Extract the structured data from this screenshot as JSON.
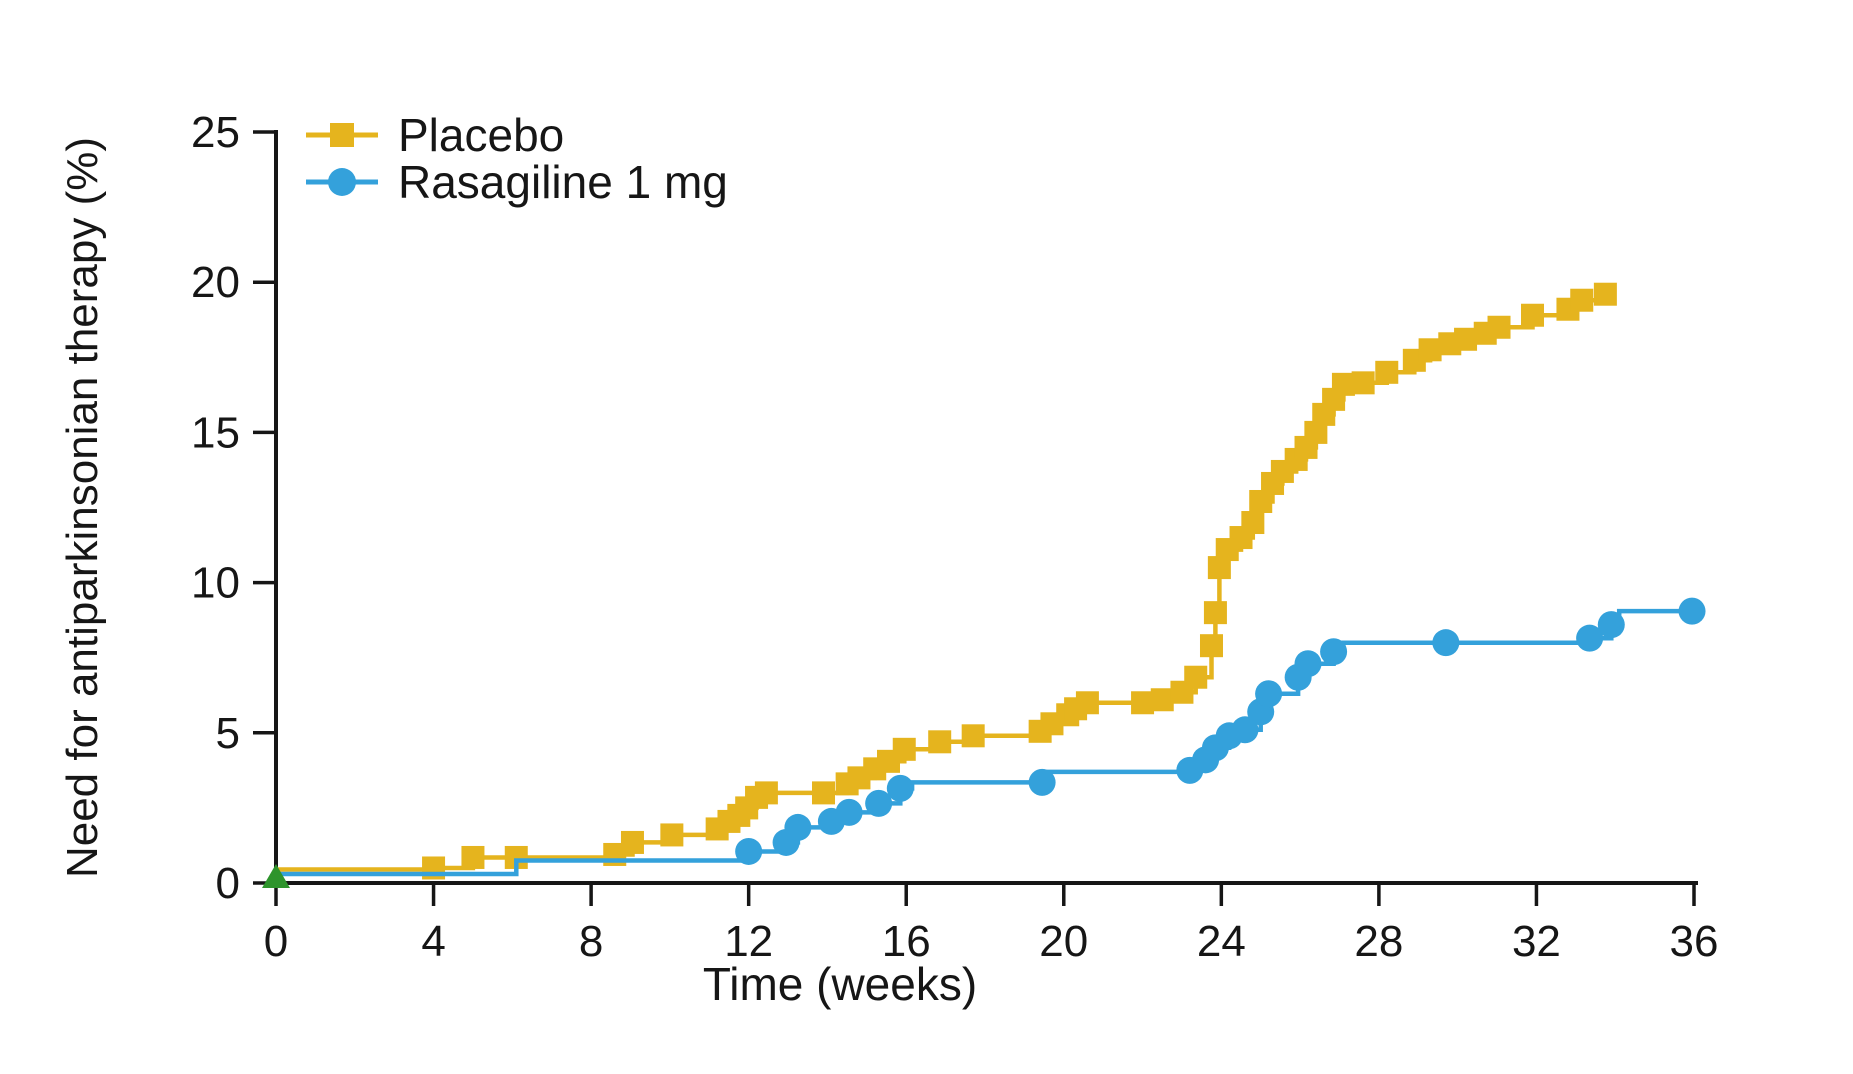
{
  "chart_data": {
    "type": "line",
    "variant": "kaplan_meier_cumulative_incidence_step",
    "title": "",
    "xlabel": "Time (weeks)",
    "ylabel": "Need for antiparkinsonian therapy (%)",
    "xlim": [
      0,
      36
    ],
    "ylim": [
      0,
      25
    ],
    "xticks": [
      0,
      4,
      8,
      12,
      16,
      20,
      24,
      28,
      32,
      36
    ],
    "yticks": [
      0,
      5,
      10,
      15,
      20,
      25
    ],
    "grid": false,
    "legend_position": "top-left-inside",
    "axis_color": "#161616",
    "background": "#ffffff",
    "origin_marker": {
      "shape": "triangle-up",
      "color": "#2e942c",
      "x": 0,
      "y": 0.2
    },
    "series": [
      {
        "name": "Placebo",
        "color": "#e5b41e",
        "marker": "square",
        "start": [
          0,
          0.45
        ],
        "points": [
          [
            4,
            0.5
          ],
          [
            5,
            0.85
          ],
          [
            6.1,
            0.85
          ],
          [
            8.6,
            0.95
          ],
          [
            9.05,
            1.35
          ],
          [
            10.05,
            1.6
          ],
          [
            11.2,
            1.8
          ],
          [
            11.5,
            2.05
          ],
          [
            11.75,
            2.25
          ],
          [
            11.95,
            2.5
          ],
          [
            12.2,
            2.85
          ],
          [
            12.45,
            3.0
          ],
          [
            13.9,
            3.0
          ],
          [
            14.5,
            3.3
          ],
          [
            14.8,
            3.5
          ],
          [
            15.2,
            3.8
          ],
          [
            15.55,
            4.05
          ],
          [
            15.95,
            4.45
          ],
          [
            16.85,
            4.7
          ],
          [
            17.7,
            4.9
          ],
          [
            19.4,
            5.05
          ],
          [
            19.7,
            5.3
          ],
          [
            20.1,
            5.6
          ],
          [
            20.3,
            5.8
          ],
          [
            20.6,
            6.0
          ],
          [
            22.0,
            6.0
          ],
          [
            22.5,
            6.1
          ],
          [
            23.0,
            6.35
          ],
          [
            23.35,
            6.85
          ],
          [
            23.75,
            7.9
          ],
          [
            23.85,
            9.0
          ],
          [
            23.95,
            10.5
          ],
          [
            24.15,
            11.1
          ],
          [
            24.5,
            11.5
          ],
          [
            24.8,
            12.0
          ],
          [
            25.0,
            12.7
          ],
          [
            25.3,
            13.3
          ],
          [
            25.55,
            13.7
          ],
          [
            25.9,
            14.1
          ],
          [
            26.15,
            14.5
          ],
          [
            26.4,
            15.0
          ],
          [
            26.6,
            15.6
          ],
          [
            26.85,
            16.1
          ],
          [
            27.1,
            16.6
          ],
          [
            27.6,
            16.65
          ],
          [
            28.2,
            17.0
          ],
          [
            28.9,
            17.4
          ],
          [
            29.3,
            17.75
          ],
          [
            29.8,
            17.95
          ],
          [
            30.2,
            18.1
          ],
          [
            30.7,
            18.3
          ],
          [
            31.05,
            18.5
          ],
          [
            31.9,
            18.9
          ],
          [
            32.8,
            19.1
          ],
          [
            33.15,
            19.4
          ],
          [
            33.75,
            19.6
          ]
        ]
      },
      {
        "name": "Rasagiline 1 mg",
        "color": "#34a1db",
        "marker": "circle",
        "start": [
          0,
          0.3
        ],
        "points": [
          [
            6.1,
            0.75,
            0
          ],
          [
            12.0,
            1.05
          ],
          [
            12.95,
            1.35
          ],
          [
            13.25,
            1.85
          ],
          [
            14.1,
            2.05
          ],
          [
            14.55,
            2.35
          ],
          [
            15.3,
            2.65
          ],
          [
            15.85,
            3.15
          ],
          [
            16.15,
            3.35,
            0
          ],
          [
            19.45,
            3.35
          ],
          [
            19.6,
            3.7,
            0
          ],
          [
            23.2,
            3.75
          ],
          [
            23.6,
            4.1
          ],
          [
            23.85,
            4.5
          ],
          [
            24.2,
            4.9
          ],
          [
            24.6,
            5.1
          ],
          [
            25.0,
            5.7
          ],
          [
            25.2,
            6.3
          ],
          [
            25.95,
            6.85
          ],
          [
            26.2,
            7.3
          ],
          [
            26.85,
            7.7
          ],
          [
            27.1,
            8.0,
            0
          ],
          [
            29.7,
            8.0
          ],
          [
            33.35,
            8.15
          ],
          [
            33.9,
            8.6
          ],
          [
            34.1,
            9.05,
            0
          ],
          [
            35.95,
            9.05
          ]
        ]
      }
    ]
  }
}
